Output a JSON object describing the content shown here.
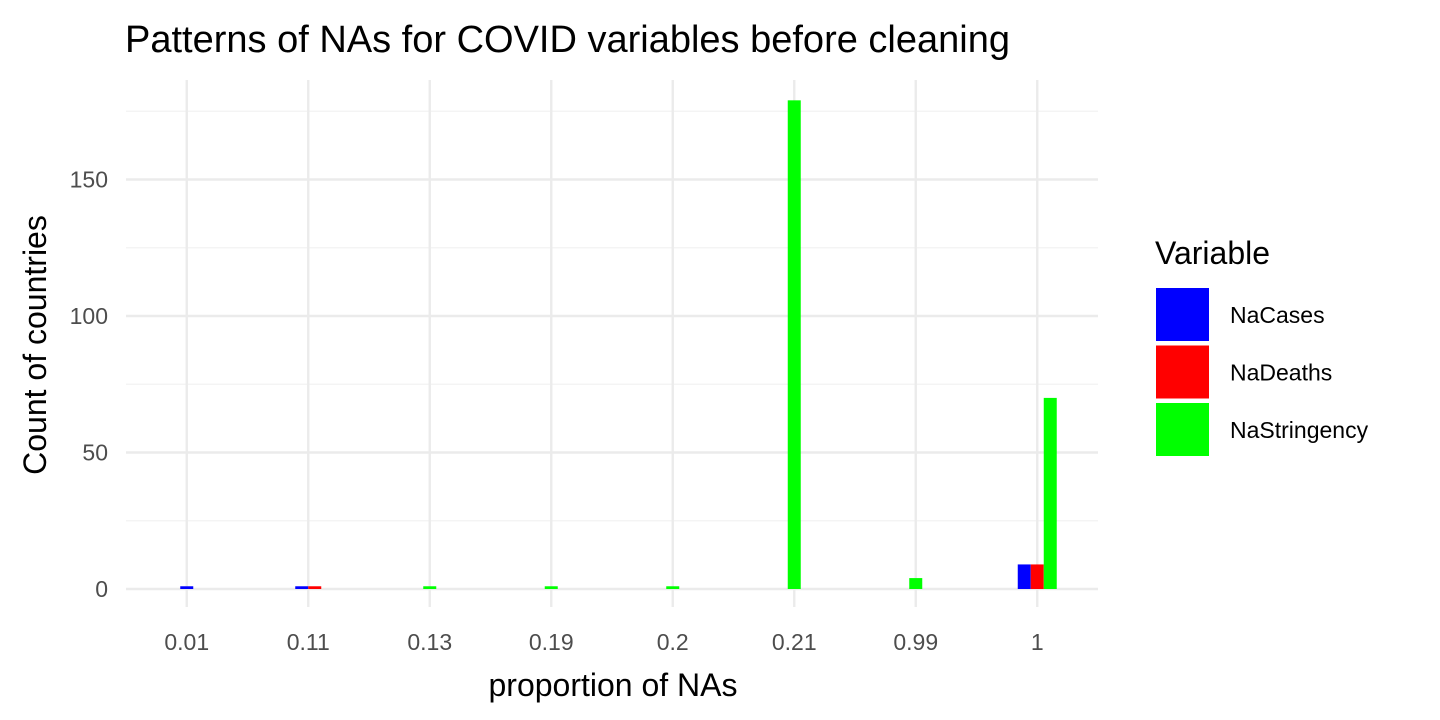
{
  "chart_data": {
    "type": "bar",
    "title": "Patterns of NAs for COVID variables before cleaning",
    "xlabel": "proportion of NAs",
    "ylabel": "Count of countries",
    "categories": [
      "0.01",
      "0.11",
      "0.13",
      "0.19",
      "0.2",
      "0.21",
      "0.99",
      "1"
    ],
    "series": [
      {
        "name": "NaCases",
        "color": "#0000FF",
        "values": [
          1,
          1,
          null,
          null,
          null,
          null,
          null,
          9
        ]
      },
      {
        "name": "NaDeaths",
        "color": "#FF0000",
        "values": [
          null,
          1,
          null,
          null,
          null,
          null,
          null,
          9
        ]
      },
      {
        "name": "NaStringency",
        "color": "#00FF00",
        "values": [
          null,
          null,
          1,
          1,
          1,
          179,
          4,
          70
        ]
      }
    ],
    "ylim": [
      0,
      178
    ],
    "yticks": [
      0,
      50,
      100,
      150
    ],
    "grid": true,
    "legend": {
      "title": "Variable",
      "position": "right"
    }
  }
}
